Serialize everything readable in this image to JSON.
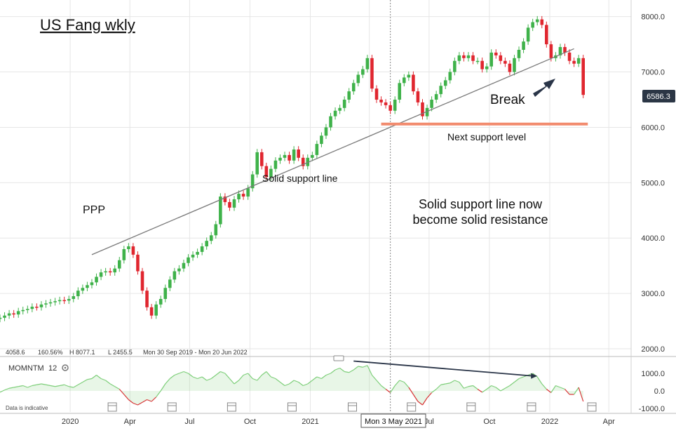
{
  "colors": {
    "up": "#3fb24a",
    "down": "#e0262f",
    "momentum_up": "#7ecf7a",
    "momentum_down": "#e0262f",
    "support_line": "#7a7a7a",
    "support_level": "#f28b6e",
    "arrow": "#2a3548",
    "grid": "#e6e6e6",
    "price_tag": "#2b3645"
  },
  "chart_data": {
    "type": "candlestick",
    "title": "US Fang wkly",
    "price_tag": "6586.3",
    "ylim": [
      2000,
      8300
    ],
    "y_ticks": [
      "8000.0",
      "7000.0",
      "6000.0",
      "5000.0",
      "4000.0",
      "3000.0",
      "2000.0"
    ],
    "y_tick_values": [
      8000,
      7000,
      6000,
      5000,
      4000,
      3000,
      2000
    ],
    "x_ticks": [
      "2020",
      "Apr",
      "Jul",
      "Oct",
      "2021",
      "Apr",
      "Jul",
      "Oct",
      "2022",
      "Apr"
    ],
    "x_tick_dates": [
      "2020-01-01",
      "2020-04-01",
      "2020-07-01",
      "2020-10-01",
      "2021-01-01",
      "2021-04-01",
      "2021-07-01",
      "2021-10-01",
      "2022-01-01",
      "2022-04-01"
    ],
    "crosshair_label": "Mon 3 May 2021",
    "crosshair_date": "2021-05-03",
    "x_range": [
      "2019-09-16",
      "2022-05-05"
    ],
    "stats": {
      "last": "4058.6",
      "change": "160.56%",
      "high": "H 8077.1",
      "low": "L 2455.5",
      "range": "Mon 30 Sep 2019 - Mon 20 Jun 2022"
    },
    "series": [
      {
        "key": "weekly",
        "start_date": "2019-09-16",
        "interval_days": 7,
        "closes": [
          2560,
          2600,
          2640,
          2620,
          2680,
          2700,
          2720,
          2760,
          2750,
          2800,
          2820,
          2840,
          2860,
          2880,
          2870,
          2900,
          2950,
          3050,
          3100,
          3150,
          3200,
          3300,
          3380,
          3400,
          3380,
          3450,
          3600,
          3800,
          3850,
          3700,
          3400,
          3050,
          2750,
          2600,
          2800,
          2900,
          3100,
          3250,
          3400,
          3450,
          3550,
          3650,
          3700,
          3750,
          3850,
          3950,
          4050,
          4250,
          4750,
          4650,
          4550,
          4700,
          4800,
          4750,
          4900,
          5150,
          5550,
          5300,
          5100,
          5250,
          5400,
          5450,
          5500,
          5400,
          5600,
          5450,
          5300,
          5450,
          5500,
          5700,
          5850,
          6000,
          6200,
          6300,
          6350,
          6500,
          6650,
          6800,
          6950,
          7050,
          7250,
          6700,
          6500,
          6450,
          6400,
          6300,
          6500,
          6800,
          6900,
          6950,
          6650,
          6450,
          6200,
          6350,
          6500,
          6600,
          6750,
          6850,
          7000,
          7200,
          7300,
          7250,
          7300,
          7200,
          7200,
          7050,
          7100,
          7350,
          7300,
          7200,
          7150,
          7000,
          7250,
          7400,
          7550,
          7800,
          7900,
          7950,
          7850,
          7500,
          7250,
          7300,
          7450,
          7350,
          7200,
          7150,
          7250,
          6586.3
        ],
        "momentum": [
          -80,
          50,
          150,
          200,
          250,
          300,
          200,
          300,
          350,
          400,
          350,
          300,
          250,
          300,
          350,
          250,
          200,
          350,
          500,
          650,
          700,
          900,
          700,
          600,
          400,
          250,
          100,
          -200,
          -500,
          -700,
          -800,
          -650,
          -500,
          -600,
          -350,
          0,
          400,
          700,
          900,
          1000,
          1100,
          1000,
          800,
          700,
          800,
          600,
          700,
          900,
          1100,
          1000,
          700,
          400,
          600,
          900,
          1000,
          700,
          600,
          900,
          1100,
          800,
          700,
          500,
          300,
          400,
          600,
          500,
          300,
          400,
          600,
          800,
          700,
          900,
          1000,
          1200,
          1300,
          1100,
          1050,
          1200,
          1400,
          1350,
          1450,
          900,
          600,
          300,
          100,
          -100,
          300,
          600,
          500,
          200,
          -200,
          -600,
          -800,
          -400,
          -100,
          100,
          350,
          400,
          450,
          600,
          500,
          150,
          250,
          300,
          100,
          -80,
          100,
          300,
          200,
          0,
          150,
          300,
          500,
          700,
          800,
          900,
          1000,
          800,
          400,
          100,
          -100,
          300,
          200,
          100,
          -200,
          -200,
          200,
          -600
        ]
      }
    ],
    "indicator": {
      "name": "MOMNTM",
      "period": "12",
      "ylim": [
        -1200,
        1800
      ],
      "y_ticks": [
        "1000.0",
        "0.0",
        "-1000.0"
      ],
      "y_tick_values": [
        1000,
        0,
        -1000
      ]
    },
    "trend_line": {
      "start_date": "2020-02-03",
      "start_value": 3700,
      "end_date": "2022-02-07",
      "end_value": 7420
    },
    "support_level": {
      "value": 6060,
      "start_date": "2021-04-19",
      "end_date": "2022-02-28"
    },
    "momentum_divergence": {
      "start_date": "2021-03-08",
      "start_value": 1700,
      "end_date": "2021-12-13",
      "end_value": 850
    },
    "annotations": {
      "ppp": "PPP",
      "solid_support_line": "Solid support line",
      "break": "Break",
      "next_support_level": "Next support level",
      "resistance_line1": "Solid support line now",
      "resistance_line2": "become solid resistance",
      "disclaimer": "Data is indicative"
    }
  }
}
